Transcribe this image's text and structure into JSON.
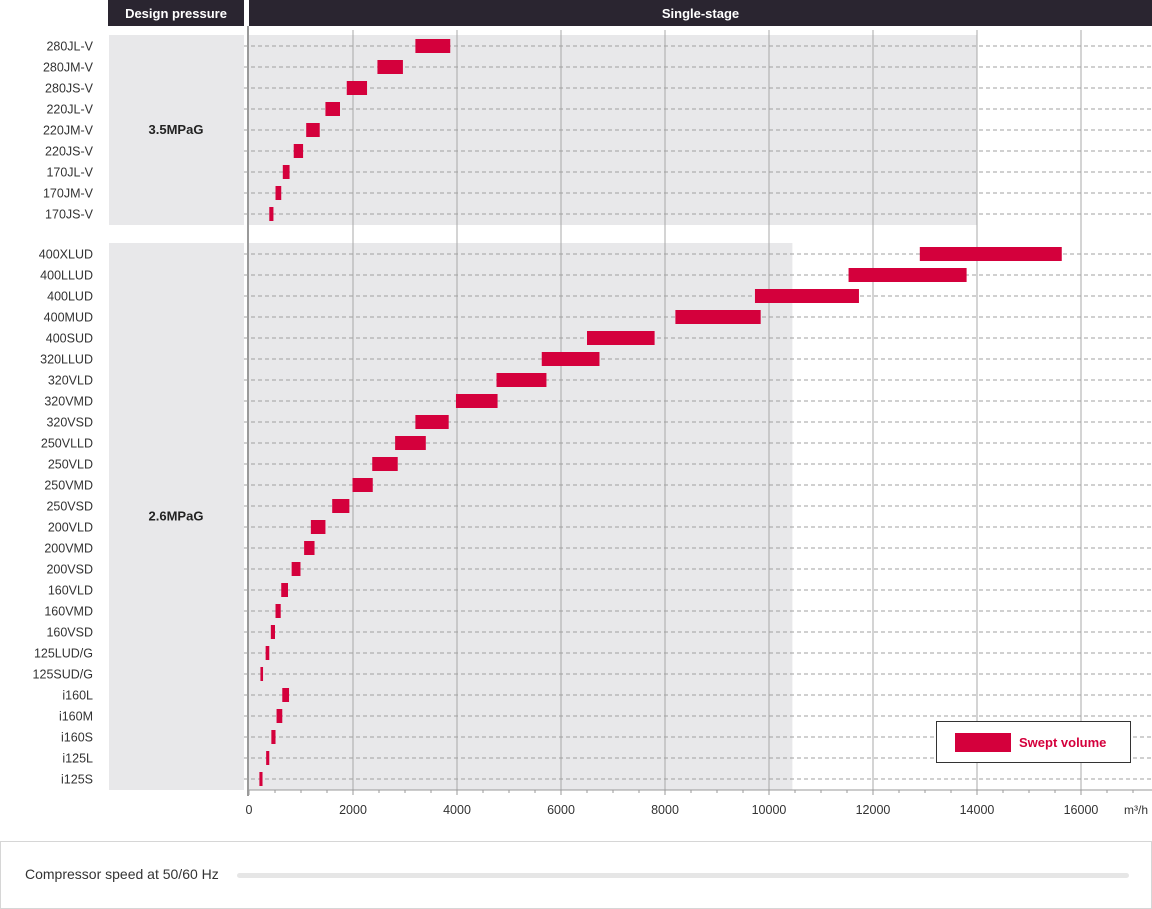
{
  "header": {
    "design_pressure": "Design pressure",
    "single_stage": "Single-stage"
  },
  "footer": {
    "label": "Compressor speed at 50/60 Hz"
  },
  "legend": {
    "label": "Swept volume"
  },
  "colors": {
    "bar": "#d4003c",
    "band": "#e8e8ea",
    "header": "#2a2530"
  },
  "chart_data": {
    "type": "bar",
    "orientation": "horizontal-range",
    "x_unit": "m³/h",
    "xlim": [
      0,
      17000
    ],
    "x_ticks": [
      0,
      2000,
      4000,
      6000,
      8000,
      10000,
      12000,
      14000,
      16000
    ],
    "groups": [
      {
        "pressure": "3.5MPaG",
        "band_to": 14000,
        "items": [
          {
            "label": "280JL-V",
            "range": [
              3200,
              3870
            ]
          },
          {
            "label": "280JM-V",
            "range": [
              2470,
              2960
            ]
          },
          {
            "label": "280JS-V",
            "range": [
              1880,
              2270
            ]
          },
          {
            "label": "220JL-V",
            "range": [
              1470,
              1750
            ]
          },
          {
            "label": "220JM-V",
            "range": [
              1100,
              1360
            ]
          },
          {
            "label": "220JS-V",
            "range": [
              860,
              1040
            ]
          },
          {
            "label": "170JL-V",
            "range": [
              650,
              780
            ]
          },
          {
            "label": "170JM-V",
            "range": [
              510,
              620
            ]
          },
          {
            "label": "170JS-V",
            "range": [
              390,
              470
            ]
          }
        ]
      },
      {
        "pressure": "2.6MPaG",
        "band_to": 10450,
        "items": [
          {
            "label": "400XLUD",
            "range": [
              12900,
              15630
            ]
          },
          {
            "label": "400LLUD",
            "range": [
              11530,
              13800
            ]
          },
          {
            "label": "400LUD",
            "range": [
              9730,
              11730
            ]
          },
          {
            "label": "400MUD",
            "range": [
              8200,
              9840
            ]
          },
          {
            "label": "400SUD",
            "range": [
              6500,
              7800
            ]
          },
          {
            "label": "320LLUD",
            "range": [
              5630,
              6740
            ]
          },
          {
            "label": "320VLD",
            "range": [
              4760,
              5720
            ]
          },
          {
            "label": "320VMD",
            "range": [
              3980,
              4780
            ]
          },
          {
            "label": "320VSD",
            "range": [
              3200,
              3840
            ]
          },
          {
            "label": "250VLLD",
            "range": [
              2810,
              3400
            ]
          },
          {
            "label": "250VLD",
            "range": [
              2370,
              2860
            ]
          },
          {
            "label": "250VMD",
            "range": [
              1990,
              2380
            ]
          },
          {
            "label": "250VSD",
            "range": [
              1600,
              1930
            ]
          },
          {
            "label": "200VLD",
            "range": [
              1190,
              1470
            ]
          },
          {
            "label": "200VMD",
            "range": [
              1060,
              1260
            ]
          },
          {
            "label": "200VSD",
            "range": [
              820,
              990
            ]
          },
          {
            "label": "160VLD",
            "range": [
              620,
              750
            ]
          },
          {
            "label": "160VMD",
            "range": [
              510,
              610
            ]
          },
          {
            "label": "160VSD",
            "range": [
              420,
              500
            ]
          },
          {
            "label": "125LUD/G",
            "range": [
              320,
              390
            ]
          },
          {
            "label": "125SUD/G",
            "range": [
              220,
              270
            ]
          },
          {
            "label": "i160L",
            "range": [
              640,
              770
            ]
          },
          {
            "label": "i160M",
            "range": [
              530,
              640
            ]
          },
          {
            "label": "i160S",
            "range": [
              430,
              510
            ]
          },
          {
            "label": "i125L",
            "range": [
              330,
              390
            ]
          },
          {
            "label": "i125S",
            "range": [
              200,
              260
            ]
          }
        ]
      }
    ]
  }
}
